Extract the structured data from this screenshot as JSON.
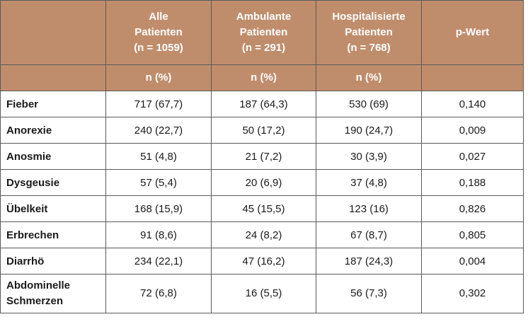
{
  "table": {
    "header": {
      "groups": [
        {
          "lines": [
            "",
            "",
            ""
          ]
        },
        {
          "lines": [
            "Alle",
            "Patienten",
            "(n = 1059)"
          ]
        },
        {
          "lines": [
            "Ambulante",
            "Patienten",
            "(n = 291)"
          ]
        },
        {
          "lines": [
            "Hospitalisierte",
            "Patienten",
            "(n = 768)"
          ]
        },
        {
          "lines": [
            "p-Wert",
            "",
            ""
          ]
        }
      ],
      "units": [
        "",
        "n (%)",
        "n (%)",
        "n (%)",
        ""
      ]
    },
    "rows": [
      {
        "label": [
          "Fieber"
        ],
        "all": "717 (67,7)",
        "outpatient": "187 (64,3)",
        "hospitalized": "530 (69)",
        "p": "0,140"
      },
      {
        "label": [
          "Anorexie"
        ],
        "all": "240 (22,7)",
        "outpatient": "50 (17,2)",
        "hospitalized": "190 (24,7)",
        "p": "0,009"
      },
      {
        "label": [
          "Anosmie"
        ],
        "all": "51 (4,8)",
        "outpatient": "21 (7,2)",
        "hospitalized": "30 (3,9)",
        "p": "0,027"
      },
      {
        "label": [
          "Dysgeusie"
        ],
        "all": "57 (5,4)",
        "outpatient": "20 (6,9)",
        "hospitalized": "37 (4,8)",
        "p": "0,188"
      },
      {
        "label": [
          "Übelkeit"
        ],
        "all": "168 (15,9)",
        "outpatient": "45 (15,5)",
        "hospitalized": "123 (16)",
        "p": "0,826"
      },
      {
        "label": [
          "Erbrechen"
        ],
        "all": "91 (8,6)",
        "outpatient": "24 (8,2)",
        "hospitalized": "67 (8,7)",
        "p": "0,805"
      },
      {
        "label": [
          "Diarrhö"
        ],
        "all": "234 (22,1)",
        "outpatient": "47 (16,2)",
        "hospitalized": "187 (24,3)",
        "p": "0,004"
      },
      {
        "label": [
          "Abdominelle",
          "Schmerzen"
        ],
        "all": "72 (6,8)",
        "outpatient": "16 (5,5)",
        "hospitalized": "56 (7,3)",
        "p": "0,302"
      }
    ],
    "colors": {
      "header_bg": "#c08d6c",
      "header_text": "#ffffff",
      "border": "#5a5a5a"
    }
  }
}
